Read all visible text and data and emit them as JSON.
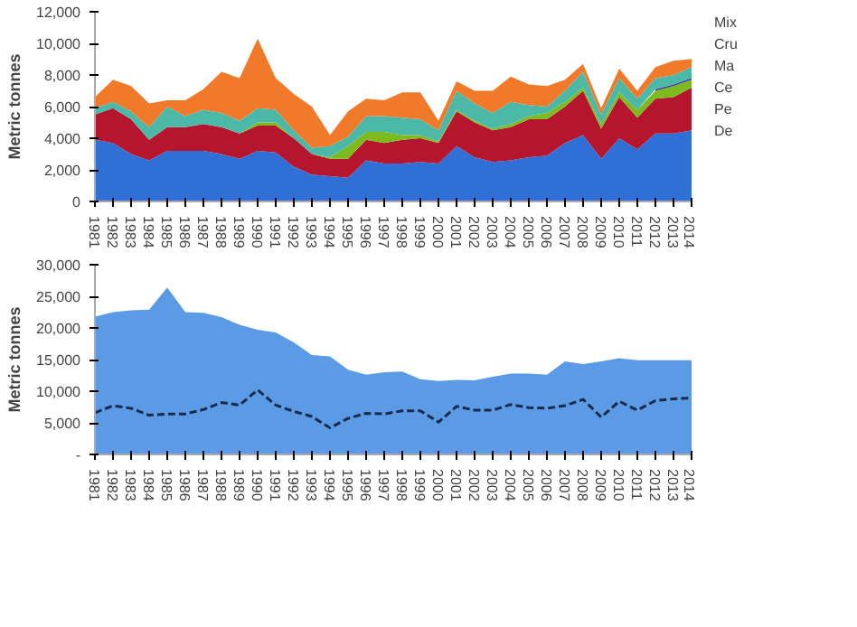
{
  "chart_data": [
    {
      "type": "area",
      "stacked": true,
      "ylabel": "Metric tonnes",
      "legend": "right",
      "grid": false,
      "categories": [
        "1981",
        "1982",
        "1983",
        "1984",
        "1985",
        "1986",
        "1987",
        "1988",
        "1989",
        "1990",
        "1991",
        "1992",
        "1993",
        "1994",
        "1995",
        "1996",
        "1997",
        "1998",
        "1999",
        "2000",
        "2001",
        "2002",
        "2003",
        "2004",
        "2005",
        "2006",
        "2007",
        "2008",
        "2009",
        "2010",
        "2011",
        "2012",
        "2013",
        "2014"
      ],
      "ylim": [
        0,
        12000
      ],
      "yticks": [
        {
          "value": 0,
          "label": "0"
        },
        {
          "value": 2000,
          "label": "2,000"
        },
        {
          "value": 4000,
          "label": "4,000"
        },
        {
          "value": 6000,
          "label": "6,000"
        },
        {
          "value": 8000,
          "label": "8,000"
        },
        {
          "value": 10000,
          "label": "10,000"
        },
        {
          "value": 12000,
          "label": "12,000"
        }
      ],
      "series": [
        {
          "name": "De",
          "color": "#2f6fd6",
          "values": [
            3900,
            3700,
            3000,
            2600,
            3200,
            3200,
            3200,
            3000,
            2700,
            3200,
            3100,
            2200,
            1700,
            1600,
            1500,
            2600,
            2400,
            2400,
            2500,
            2400,
            3500,
            2800,
            2500,
            2600,
            2800,
            2900,
            3700,
            4200,
            2700,
            4000,
            3300,
            4300,
            4300,
            4500
          ]
        },
        {
          "name": "Pe",
          "color": "#b5162e",
          "values": [
            1600,
            2200,
            2200,
            1300,
            1500,
            1500,
            1700,
            1700,
            1600,
            1600,
            1700,
            1800,
            1300,
            1100,
            1200,
            1300,
            1300,
            1500,
            1500,
            1300,
            2200,
            2200,
            2000,
            2100,
            2400,
            2300,
            2300,
            2800,
            1900,
            2600,
            2000,
            2200,
            2300,
            2700
          ]
        },
        {
          "name": "Ce",
          "color": "#7cba1e",
          "values": [
            0,
            0,
            0,
            0,
            0,
            0,
            0,
            0,
            0,
            200,
            200,
            0,
            0,
            100,
            800,
            500,
            700,
            300,
            200,
            100,
            100,
            100,
            100,
            200,
            200,
            400,
            300,
            200,
            300,
            300,
            500,
            500,
            700,
            500
          ]
        },
        {
          "name": "Ma",
          "color": "#3a3a9e",
          "values": [
            null,
            null,
            null,
            null,
            null,
            null,
            null,
            null,
            null,
            null,
            null,
            null,
            null,
            null,
            null,
            null,
            null,
            null,
            null,
            null,
            null,
            null,
            null,
            null,
            null,
            null,
            null,
            null,
            null,
            null,
            null,
            100,
            100,
            100
          ]
        },
        {
          "name": "Cru",
          "color": "#4cb8a8",
          "values": [
            400,
            400,
            500,
            800,
            1300,
            700,
            900,
            900,
            800,
            900,
            800,
            500,
            400,
            700,
            600,
            1000,
            1000,
            1100,
            1000,
            700,
            1200,
            1100,
            1000,
            1400,
            700,
            400,
            700,
            1000,
            600,
            900,
            700,
            700,
            600,
            700
          ]
        },
        {
          "name": "Mix",
          "color": "#f07a2a",
          "values": [
            700,
            1400,
            1600,
            1500,
            400,
            1000,
            1300,
            2600,
            2700,
            4400,
            2000,
            2300,
            2600,
            700,
            1600,
            1100,
            1000,
            1600,
            1700,
            600,
            600,
            800,
            1400,
            1600,
            1300,
            1300,
            700,
            500,
            400,
            600,
            500,
            700,
            900,
            500
          ]
        }
      ]
    },
    {
      "type": "area",
      "ylabel": "Metric tonnes",
      "grid": false,
      "categories": [
        "1981",
        "1982",
        "1983",
        "1984",
        "1985",
        "1986",
        "1987",
        "1988",
        "1989",
        "1990",
        "1991",
        "1992",
        "1993",
        "1994",
        "1995",
        "1996",
        "1997",
        "1998",
        "1999",
        "2000",
        "2001",
        "2002",
        "2003",
        "2004",
        "2005",
        "2006",
        "2007",
        "2008",
        "2009",
        "2010",
        "2011",
        "2012",
        "2013",
        "2014"
      ],
      "ylim": [
        0,
        30000
      ],
      "yticks": [
        {
          "value": 0,
          "label": "-"
        },
        {
          "value": 5000,
          "label": "5,000"
        },
        {
          "value": 10000,
          "label": "10,000"
        },
        {
          "value": 15000,
          "label": "15,000"
        },
        {
          "value": 20000,
          "label": "20,000"
        },
        {
          "value": 25000,
          "label": "25,000"
        },
        {
          "value": 30000,
          "label": "30,000"
        }
      ],
      "series": [
        {
          "color": "#5b9be6",
          "values": [
            21800,
            22500,
            22800,
            22900,
            26400,
            22500,
            22400,
            21700,
            20500,
            19700,
            19300,
            17700,
            15700,
            15500,
            13400,
            12600,
            13000,
            13100,
            11900,
            11600,
            11800,
            11700,
            12300,
            12800,
            12800,
            12600,
            14700,
            14300,
            14700,
            15200,
            14900,
            14900,
            14900,
            14900
          ]
        },
        {
          "type": "line",
          "line_style": "dashed",
          "color": "#1a2a4a",
          "values": [
            6600,
            7700,
            7300,
            6200,
            6400,
            6400,
            7100,
            8200,
            7800,
            10200,
            7800,
            6800,
            6000,
            4200,
            5700,
            6500,
            6400,
            6900,
            6900,
            5100,
            7600,
            7000,
            7000,
            7900,
            7400,
            7300,
            7700,
            8700,
            5900,
            8400,
            7000,
            8500,
            8800,
            8900
          ]
        }
      ]
    }
  ]
}
